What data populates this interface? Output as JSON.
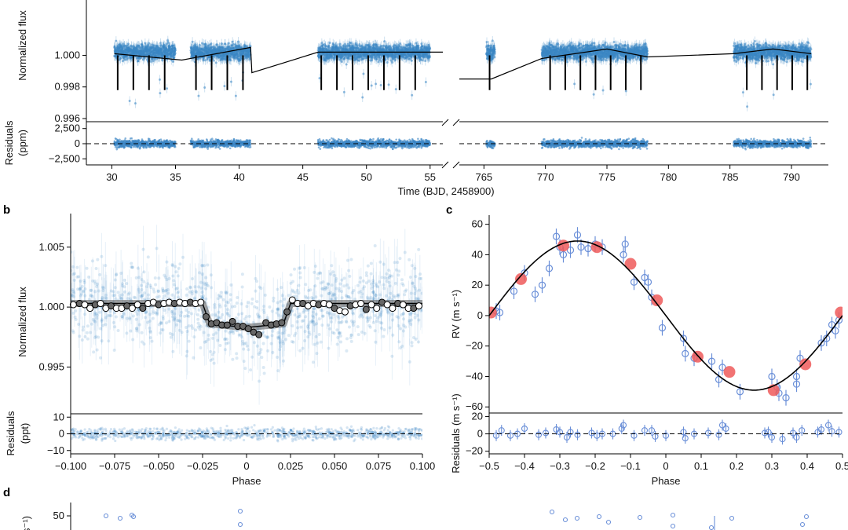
{
  "panel_labels": {
    "b": "b",
    "c": "c",
    "d": "d"
  },
  "colors": {
    "point": "#3a86c4",
    "open_marker": "#6a8fd8",
    "red_marker": "#ef5a5a",
    "model": "#000000"
  },
  "chart_data": [
    {
      "id": "a",
      "type": "scatter",
      "xlabel": "Time (BJD, 2458900)",
      "top": {
        "ylabel": "Normalized flux",
        "yticks": [
          0.996,
          0.998,
          1.0
        ],
        "ytick_labels": [
          "0.996",
          "0.998",
          "1.000"
        ],
        "segments": [
          {
            "xlim": [
              28,
              56
            ],
            "xticks": [
              30,
              35,
              40,
              45,
              50,
              55
            ],
            "xtick_labels": [
              "30",
              "35",
              "40",
              "45",
              "50",
              "55"
            ],
            "data_ranges": [
              [
                30.2,
                35.0
              ],
              [
                36.2,
                40.9
              ],
              [
                46.2,
                55.0
              ]
            ]
          },
          {
            "xlim": [
              763,
              793
            ],
            "xticks": [
              765,
              770,
              775,
              780,
              785,
              790
            ],
            "xtick_labels": [
              "765",
              "770",
              "775",
              "780",
              "785",
              "790"
            ],
            "data_ranges": [
              [
                765.2,
                765.9
              ],
              [
                769.7,
                778.3
              ],
              [
                785.3,
                791.6
              ]
            ]
          }
        ],
        "ylim": [
          0.9958,
          1.0035
        ],
        "model_line": [
          [
            30.2,
            1.0001
          ],
          [
            35.5,
            0.9997
          ],
          [
            40.9,
            1.0005
          ],
          [
            41.0,
            0.9989
          ],
          [
            46.2,
            1.0002
          ],
          [
            50.0,
            1.0002
          ],
          [
            56.0,
            1.0002
          ],
          [
            763.0,
            0.9985
          ],
          [
            765.6,
            0.9985
          ],
          [
            769.7,
            0.9998
          ],
          [
            775.0,
            1.0004
          ],
          [
            778.3,
            0.9999
          ],
          [
            785.3,
            1.0001
          ],
          [
            788.5,
            1.0004
          ],
          [
            791.6,
            1.0001
          ]
        ]
      },
      "residuals": {
        "ylabel": "Residuals (ppm)",
        "yticks": [
          -2500,
          0,
          2500
        ],
        "ytick_labels": [
          "−2,500",
          "0",
          "2,500"
        ],
        "ylim": [
          -3500,
          3500
        ]
      }
    },
    {
      "id": "b",
      "type": "scatter",
      "xlabel": "Phase",
      "xlim": [
        -0.1,
        0.1
      ],
      "xticks": [
        -0.1,
        -0.075,
        -0.05,
        -0.025,
        0,
        0.025,
        0.05,
        0.075,
        0.1
      ],
      "xtick_labels": [
        "−0.100",
        "−0.075",
        "−0.050",
        "−0.025",
        "0",
        "0.025",
        "0.050",
        "0.075",
        "0.100"
      ],
      "top": {
        "ylabel": "Normalized flux",
        "ylim": [
          0.9911,
          1.0078
        ],
        "yticks": [
          0.995,
          1.0,
          1.005
        ],
        "ytick_labels": [
          "0.995",
          "1.000",
          "1.005"
        ],
        "transit_model": [
          [
            -0.1,
            1.0003
          ],
          [
            -0.025,
            1.0003
          ],
          [
            -0.021,
            0.9986
          ],
          [
            0.0,
            0.9983
          ],
          [
            0.021,
            0.9986
          ],
          [
            0.025,
            1.0003
          ],
          [
            0.1,
            1.0003
          ]
        ],
        "binned_points": [
          {
            "x": -0.0985,
            "y": 1.0002
          },
          {
            "x": -0.095,
            "y": 1.0003
          },
          {
            "x": -0.092,
            "y": 1.0002
          },
          {
            "x": -0.089,
            "y": 0.9999
          },
          {
            "x": -0.086,
            "y": 1.0002
          },
          {
            "x": -0.083,
            "y": 1.0003
          },
          {
            "x": -0.08,
            "y": 0.9999
          },
          {
            "x": -0.077,
            "y": 1.0001
          },
          {
            "x": -0.074,
            "y": 0.9999
          },
          {
            "x": -0.071,
            "y": 0.9999
          },
          {
            "x": -0.068,
            "y": 1.0001
          },
          {
            "x": -0.065,
            "y": 0.9999
          },
          {
            "x": -0.062,
            "y": 1.0002
          },
          {
            "x": -0.059,
            "y": 0.9999
          },
          {
            "x": -0.056,
            "y": 1.0003
          },
          {
            "x": -0.053,
            "y": 1.0004
          },
          {
            "x": -0.05,
            "y": 1.0002
          },
          {
            "x": -0.047,
            "y": 1.0003
          },
          {
            "x": -0.044,
            "y": 1.0004
          },
          {
            "x": -0.041,
            "y": 1.0003
          },
          {
            "x": -0.038,
            "y": 1.0004
          },
          {
            "x": -0.035,
            "y": 1.0003
          },
          {
            "x": -0.032,
            "y": 1.0004
          },
          {
            "x": -0.029,
            "y": 1.0003
          },
          {
            "x": -0.026,
            "y": 1.0004
          },
          {
            "x": -0.023,
            "y": 0.9992
          },
          {
            "x": -0.02,
            "y": 0.9986
          },
          {
            "x": -0.017,
            "y": 0.9987
          },
          {
            "x": -0.014,
            "y": 0.9985
          },
          {
            "x": -0.011,
            "y": 0.9985
          },
          {
            "x": -0.008,
            "y": 0.9988
          },
          {
            "x": -0.005,
            "y": 0.9984
          },
          {
            "x": -0.002,
            "y": 0.9984
          },
          {
            "x": 0.001,
            "y": 0.9982
          },
          {
            "x": 0.004,
            "y": 0.9979
          },
          {
            "x": 0.007,
            "y": 0.9977
          },
          {
            "x": 0.011,
            "y": 0.9987
          },
          {
            "x": 0.014,
            "y": 0.9985
          },
          {
            "x": 0.017,
            "y": 0.9986
          },
          {
            "x": 0.02,
            "y": 0.9987
          },
          {
            "x": 0.023,
            "y": 0.9996
          },
          {
            "x": 0.026,
            "y": 1.0006
          },
          {
            "x": 0.029,
            "y": 1.0003
          },
          {
            "x": 0.032,
            "y": 1.0003
          },
          {
            "x": 0.035,
            "y": 1.0001
          },
          {
            "x": 0.038,
            "y": 1.0003
          },
          {
            "x": 0.041,
            "y": 1.0002
          },
          {
            "x": 0.044,
            "y": 1.0003
          },
          {
            "x": 0.047,
            "y": 1.0002
          },
          {
            "x": 0.05,
            "y": 0.9999
          },
          {
            "x": 0.053,
            "y": 0.9997
          },
          {
            "x": 0.056,
            "y": 0.9996
          },
          {
            "x": 0.059,
            "y": 1.0001
          },
          {
            "x": 0.062,
            "y": 1.0002
          },
          {
            "x": 0.065,
            "y": 1.0003
          },
          {
            "x": 0.068,
            "y": 0.9998
          },
          {
            "x": 0.071,
            "y": 1.0002
          },
          {
            "x": 0.074,
            "y": 0.9999
          },
          {
            "x": 0.077,
            "y": 1.0004
          },
          {
            "x": 0.08,
            "y": 1.0002
          },
          {
            "x": 0.083,
            "y": 0.9999
          },
          {
            "x": 0.086,
            "y": 1.0003
          },
          {
            "x": 0.089,
            "y": 1.0002
          },
          {
            "x": 0.092,
            "y": 0.9999
          },
          {
            "x": 0.095,
            "y": 0.9999
          },
          {
            "x": 0.098,
            "y": 1.0001
          }
        ]
      },
      "residuals": {
        "ylabel": "Residuals (ppt)",
        "ylim": [
          -12,
          12
        ],
        "yticks": [
          -10,
          0,
          10
        ],
        "ytick_labels": [
          "−10",
          "0",
          "10"
        ]
      }
    },
    {
      "id": "c",
      "type": "scatter",
      "xlabel": "Phase",
      "xlim": [
        -0.5,
        0.5
      ],
      "xticks": [
        -0.5,
        -0.4,
        -0.3,
        -0.2,
        -0.1,
        0,
        0.1,
        0.2,
        0.3,
        0.4,
        0.5
      ],
      "xtick_labels": [
        "−0.5",
        "−0.4",
        "−0.3",
        "−0.2",
        "−0.1",
        "0",
        "0.1",
        "0.2",
        "0.3",
        "0.4",
        "0.5"
      ],
      "top": {
        "ylabel": "RV (m s⁻¹)",
        "ylim": [
          -64,
          66
        ],
        "yticks": [
          -60,
          -40,
          -20,
          0,
          20,
          40,
          60
        ],
        "ytick_labels": [
          "−60",
          "−40",
          "−20",
          "0",
          "20",
          "40",
          "60"
        ],
        "model": {
          "form": "sine",
          "amplitude": 49,
          "phase_of_max": -0.25
        },
        "binned_red": [
          {
            "x": -0.495,
            "y": 2
          },
          {
            "x": -0.41,
            "y": 24
          },
          {
            "x": -0.29,
            "y": 46
          },
          {
            "x": -0.195,
            "y": 45
          },
          {
            "x": -0.1,
            "y": 34
          },
          {
            "x": -0.025,
            "y": 10
          },
          {
            "x": 0.09,
            "y": -27
          },
          {
            "x": 0.18,
            "y": -37
          },
          {
            "x": 0.305,
            "y": -49
          },
          {
            "x": 0.395,
            "y": -32
          },
          {
            "x": 0.495,
            "y": 2
          }
        ],
        "points": [
          {
            "x": -0.48,
            "y": 3
          },
          {
            "x": -0.47,
            "y": 2
          },
          {
            "x": -0.43,
            "y": 16
          },
          {
            "x": -0.4,
            "y": 28
          },
          {
            "x": -0.37,
            "y": 14
          },
          {
            "x": -0.35,
            "y": 20
          },
          {
            "x": -0.33,
            "y": 31
          },
          {
            "x": -0.31,
            "y": 52
          },
          {
            "x": -0.3,
            "y": 45
          },
          {
            "x": -0.29,
            "y": 40
          },
          {
            "x": -0.27,
            "y": 43
          },
          {
            "x": -0.25,
            "y": 53
          },
          {
            "x": -0.24,
            "y": 45
          },
          {
            "x": -0.22,
            "y": 44
          },
          {
            "x": -0.2,
            "y": 47
          },
          {
            "x": -0.18,
            "y": 45
          },
          {
            "x": -0.12,
            "y": 40
          },
          {
            "x": -0.115,
            "y": 47
          },
          {
            "x": -0.09,
            "y": 22
          },
          {
            "x": -0.06,
            "y": 25
          },
          {
            "x": -0.05,
            "y": 22
          },
          {
            "x": -0.04,
            "y": 12
          },
          {
            "x": -0.01,
            "y": -8
          },
          {
            "x": 0.05,
            "y": -15
          },
          {
            "x": 0.055,
            "y": -25
          },
          {
            "x": 0.08,
            "y": -28
          },
          {
            "x": 0.13,
            "y": -30
          },
          {
            "x": 0.15,
            "y": -42
          },
          {
            "x": 0.16,
            "y": -34
          },
          {
            "x": 0.21,
            "y": -50
          },
          {
            "x": 0.3,
            "y": -40
          },
          {
            "x": 0.315,
            "y": -47
          },
          {
            "x": 0.32,
            "y": -51
          },
          {
            "x": 0.34,
            "y": -54
          },
          {
            "x": 0.37,
            "y": -45
          },
          {
            "x": 0.37,
            "y": -40
          },
          {
            "x": 0.38,
            "y": -28
          },
          {
            "x": 0.44,
            "y": -18
          },
          {
            "x": 0.455,
            "y": -15
          },
          {
            "x": 0.47,
            "y": -6
          },
          {
            "x": 0.48,
            "y": -10
          },
          {
            "x": 0.49,
            "y": -3
          }
        ]
      },
      "residuals": {
        "ylabel": "Residuals (m s⁻¹)",
        "ylim": [
          -23,
          24
        ],
        "yticks": [
          -20,
          0,
          20
        ],
        "ytick_labels": [
          "−20",
          "0",
          "20"
        ],
        "points": [
          {
            "x": -0.48,
            "y": -2
          },
          {
            "x": -0.465,
            "y": 4
          },
          {
            "x": -0.44,
            "y": -2
          },
          {
            "x": -0.42,
            "y": 0
          },
          {
            "x": -0.4,
            "y": 6
          },
          {
            "x": -0.36,
            "y": -1
          },
          {
            "x": -0.34,
            "y": 1
          },
          {
            "x": -0.31,
            "y": 5
          },
          {
            "x": -0.3,
            "y": 2
          },
          {
            "x": -0.28,
            "y": -4
          },
          {
            "x": -0.27,
            "y": 2
          },
          {
            "x": -0.25,
            "y": -1
          },
          {
            "x": -0.21,
            "y": 1
          },
          {
            "x": -0.195,
            "y": -2
          },
          {
            "x": -0.18,
            "y": 0
          },
          {
            "x": -0.15,
            "y": 0
          },
          {
            "x": -0.125,
            "y": 6
          },
          {
            "x": -0.12,
            "y": 10
          },
          {
            "x": -0.09,
            "y": -2
          },
          {
            "x": -0.06,
            "y": 4
          },
          {
            "x": -0.04,
            "y": 4
          },
          {
            "x": -0.03,
            "y": -3
          },
          {
            "x": 0.0,
            "y": -2
          },
          {
            "x": 0.05,
            "y": 2
          },
          {
            "x": 0.055,
            "y": -5
          },
          {
            "x": 0.08,
            "y": 0
          },
          {
            "x": 0.12,
            "y": 1
          },
          {
            "x": 0.15,
            "y": -1
          },
          {
            "x": 0.16,
            "y": 10
          },
          {
            "x": 0.17,
            "y": 6
          },
          {
            "x": 0.28,
            "y": 1
          },
          {
            "x": 0.29,
            "y": 2
          },
          {
            "x": 0.3,
            "y": -4
          },
          {
            "x": 0.33,
            "y": -6
          },
          {
            "x": 0.36,
            "y": 1
          },
          {
            "x": 0.37,
            "y": -4
          },
          {
            "x": 0.385,
            "y": 4
          },
          {
            "x": 0.43,
            "y": 2
          },
          {
            "x": 0.44,
            "y": 5
          },
          {
            "x": 0.46,
            "y": 10
          },
          {
            "x": 0.47,
            "y": 3
          },
          {
            "x": 0.49,
            "y": 2
          }
        ]
      }
    },
    {
      "id": "d",
      "type": "scatter",
      "ylabel_partial": "s⁻¹)",
      "yticks": [
        50
      ],
      "ytick_labels": [
        "50"
      ]
    }
  ]
}
